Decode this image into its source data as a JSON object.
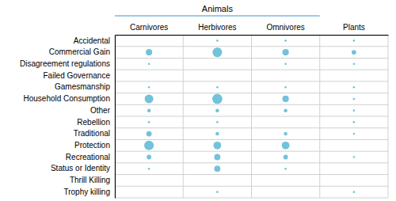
{
  "chart_data": {
    "type": "bubble",
    "categories": [
      "Carnivores",
      "Herbivores",
      "Omnivores",
      "Plants"
    ],
    "y_categories": [
      "Accidental",
      "Commercial Gain",
      "Disagreement regulations",
      "Failed Governance",
      "Gamesmanship",
      "Household Consumption",
      "Other",
      "Rebellion",
      "Traditional",
      "Protection",
      "Recreational",
      "Status or Identity",
      "Thrill Killing",
      "Trophy killing"
    ],
    "sizes": [
      [
        0,
        1,
        1,
        1
      ],
      [
        10,
        22,
        10,
        5
      ],
      [
        1,
        0,
        1,
        1
      ],
      [
        0,
        0,
        0,
        0
      ],
      [
        1,
        1,
        1,
        1
      ],
      [
        18,
        24,
        10,
        1
      ],
      [
        3,
        3,
        3,
        1
      ],
      [
        1,
        1,
        0,
        1
      ],
      [
        7,
        3,
        3,
        1
      ],
      [
        22,
        14,
        14,
        0
      ],
      [
        5,
        9,
        5,
        1
      ],
      [
        1,
        9,
        1,
        0
      ],
      [
        0,
        0,
        0,
        0
      ],
      [
        0,
        1,
        0,
        1
      ]
    ],
    "color": "#72C2DC",
    "grid": true,
    "annotations": [
      {
        "text": "Animals",
        "span": [
          "Carnivores",
          "Omnivores"
        ]
      }
    ]
  }
}
